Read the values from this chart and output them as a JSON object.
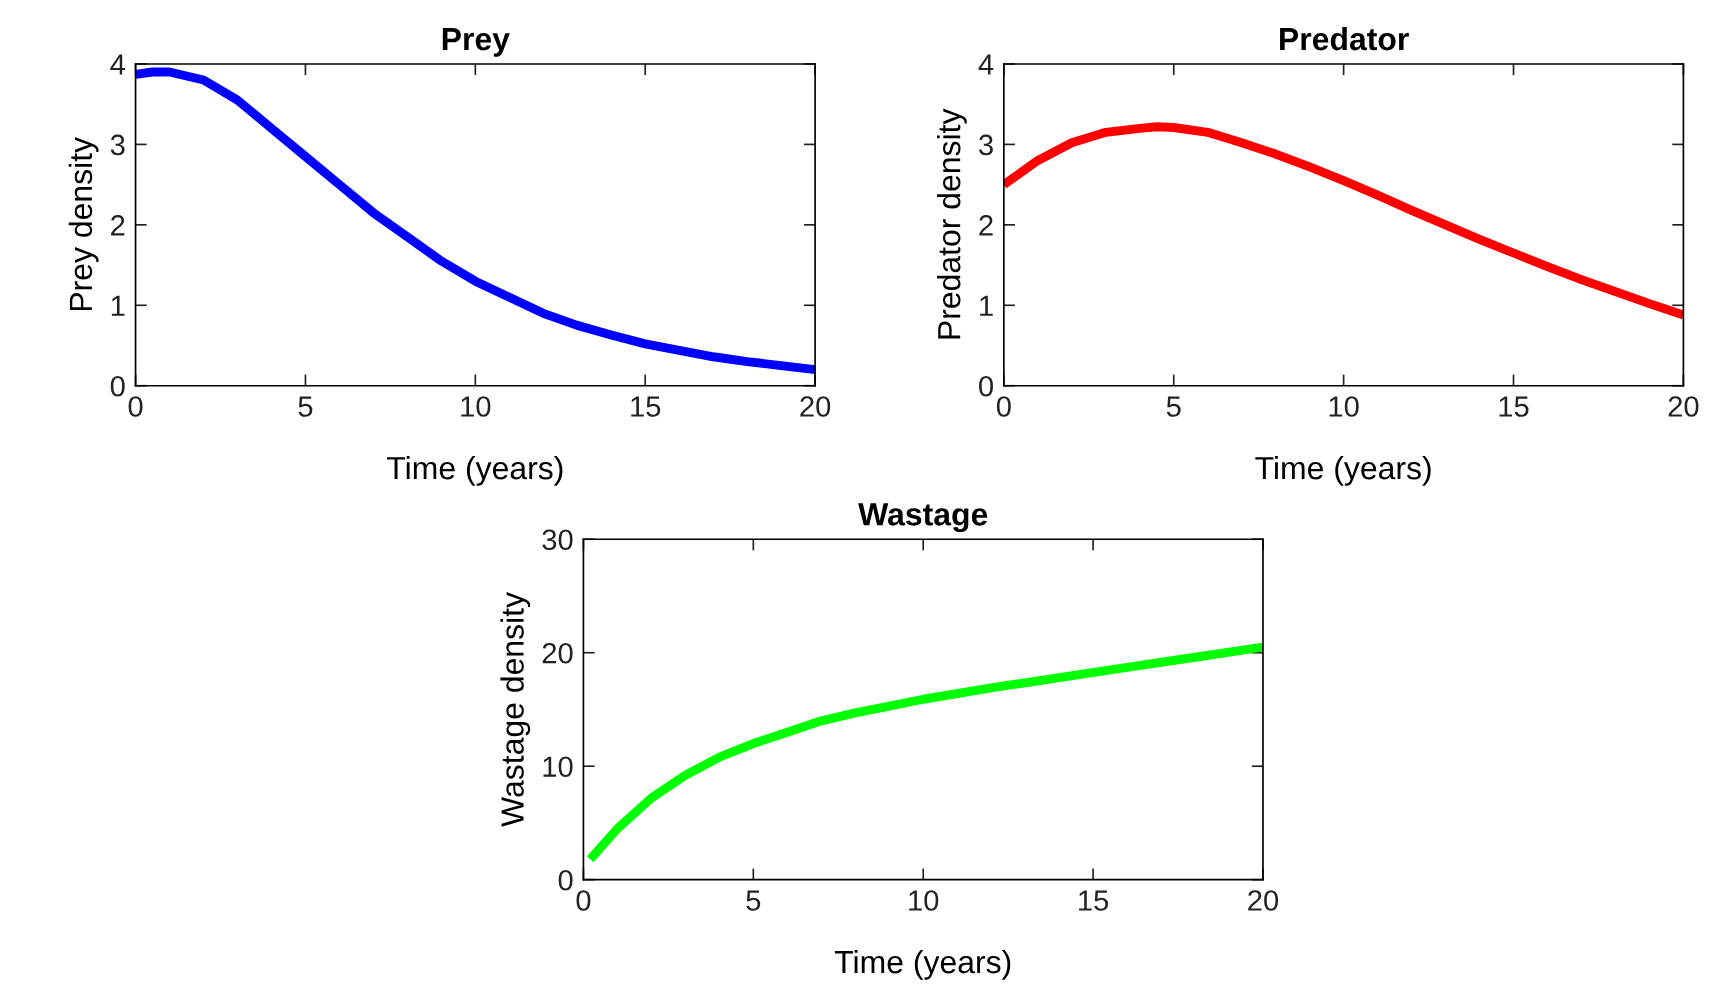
{
  "chart_data": [
    {
      "type": "line",
      "title": "Prey",
      "xlabel": "Time (years)",
      "ylabel": "Prey density",
      "xlim": [
        0,
        20
      ],
      "ylim": [
        0,
        4
      ],
      "xticks": [
        0,
        5,
        10,
        15,
        20
      ],
      "yticks": [
        0,
        1,
        2,
        3,
        4
      ],
      "grid": false,
      "marker": "none",
      "line_style": "solid",
      "x": [
        0,
        0.5,
        1,
        2,
        3,
        4,
        5,
        6,
        7,
        8,
        9,
        10,
        11,
        12,
        13,
        14,
        15,
        16,
        17,
        18,
        19,
        20
      ],
      "series": [
        {
          "color": "#0000ff",
          "values": [
            3.87,
            3.9,
            3.9,
            3.8,
            3.55,
            3.2,
            2.85,
            2.5,
            2.15,
            1.85,
            1.55,
            1.3,
            1.1,
            0.9,
            0.75,
            0.63,
            0.52,
            0.44,
            0.36,
            0.3,
            0.25,
            0.2
          ]
        }
      ]
    },
    {
      "type": "line",
      "title": "Predator",
      "xlabel": "Time (years)",
      "ylabel": "Predator density",
      "xlim": [
        0,
        20
      ],
      "ylim": [
        0,
        4
      ],
      "xticks": [
        0,
        5,
        10,
        15,
        20
      ],
      "yticks": [
        0,
        1,
        2,
        3,
        4
      ],
      "grid": false,
      "marker": "none",
      "line_style": "solid",
      "x": [
        0,
        1,
        2,
        3,
        4,
        4.5,
        5,
        6,
        7,
        8,
        9,
        10,
        11,
        12,
        13,
        14,
        15,
        16,
        17,
        18,
        19,
        20
      ],
      "series": [
        {
          "color": "#ff0000",
          "values": [
            2.5,
            2.8,
            3.02,
            3.15,
            3.2,
            3.22,
            3.21,
            3.15,
            3.02,
            2.88,
            2.72,
            2.55,
            2.37,
            2.18,
            2.0,
            1.82,
            1.65,
            1.48,
            1.32,
            1.17,
            1.02,
            0.88
          ]
        }
      ]
    },
    {
      "type": "line",
      "title": "Wastage",
      "xlabel": "Time (years)",
      "ylabel": "Wastage density",
      "xlim": [
        0,
        20
      ],
      "ylim": [
        0,
        30
      ],
      "xticks": [
        0,
        5,
        10,
        15,
        20
      ],
      "yticks": [
        0,
        10,
        20,
        30
      ],
      "grid": false,
      "marker": "none",
      "line_style": "solid",
      "x": [
        0.2,
        1,
        2,
        3,
        4,
        5,
        6,
        7,
        8,
        9,
        10,
        12,
        14,
        16,
        18,
        20
      ],
      "series": [
        {
          "color": "#00ff00",
          "values": [
            1.8,
            4.5,
            7.2,
            9.2,
            10.8,
            12,
            13,
            14,
            14.7,
            15.3,
            15.9,
            16.9,
            17.8,
            18.7,
            19.6,
            20.5
          ]
        }
      ]
    }
  ]
}
